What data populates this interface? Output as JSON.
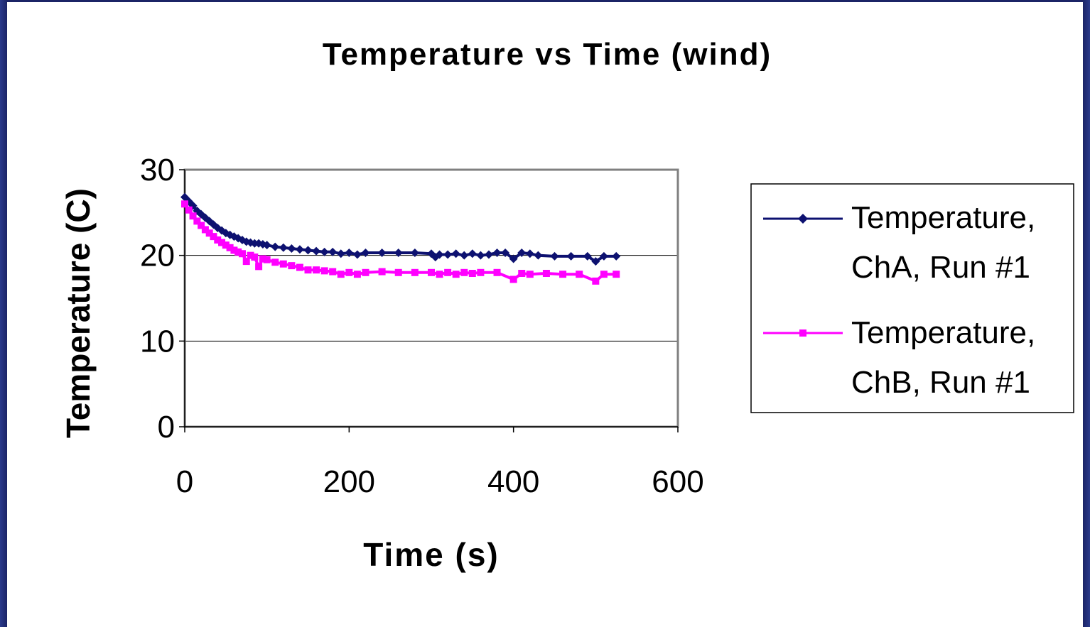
{
  "colors": {
    "background": "#1b2466",
    "seriesA": "#0d1170",
    "seriesB": "#ff00ff",
    "grid": "#000000",
    "plotBorder": "#808080"
  },
  "chart_data": {
    "type": "line",
    "title": "Temperature vs Time (wind)",
    "xlabel": "Time (s)",
    "ylabel": "Temperature (C)",
    "xlim": [
      0,
      600
    ],
    "ylim": [
      0,
      30
    ],
    "xticks": [
      "0",
      "200",
      "400",
      "600"
    ],
    "yticks": [
      "0",
      "10",
      "20",
      "30"
    ],
    "grid": "horizontal",
    "legend_position": "right",
    "series": [
      {
        "name": "Temperature, ChA, Run #1",
        "line1": "Temperature,",
        "line2": "ChA, Run #1",
        "marker": "diamond",
        "color": "#0d1170",
        "x": [
          0,
          5,
          10,
          15,
          20,
          25,
          30,
          35,
          40,
          45,
          50,
          55,
          60,
          65,
          70,
          75,
          80,
          85,
          90,
          95,
          100,
          110,
          120,
          130,
          140,
          150,
          160,
          170,
          180,
          190,
          200,
          210,
          220,
          240,
          260,
          280,
          300,
          305,
          310,
          320,
          330,
          340,
          350,
          360,
          370,
          380,
          390,
          400,
          410,
          420,
          430,
          450,
          470,
          490,
          500,
          510,
          525
        ],
        "y": [
          26.8,
          26.3,
          25.8,
          25.2,
          24.8,
          24.4,
          24.0,
          23.6,
          23.2,
          22.9,
          22.6,
          22.4,
          22.2,
          22.0,
          21.8,
          21.6,
          21.5,
          21.4,
          21.4,
          21.3,
          21.2,
          21.0,
          20.9,
          20.8,
          20.7,
          20.6,
          20.5,
          20.4,
          20.4,
          20.2,
          20.3,
          20.1,
          20.3,
          20.3,
          20.3,
          20.3,
          20.2,
          19.8,
          20.1,
          20.1,
          20.2,
          20.0,
          20.2,
          20.0,
          20.1,
          20.3,
          20.3,
          19.6,
          20.3,
          20.2,
          20.0,
          19.9,
          19.9,
          19.9,
          19.3,
          19.9,
          19.9
        ]
      },
      {
        "name": "Temperature, ChB, Run #1",
        "line1": "Temperature,",
        "line2": "ChB, Run #1",
        "marker": "square",
        "color": "#ff00ff",
        "x": [
          0,
          5,
          10,
          15,
          20,
          25,
          30,
          35,
          40,
          45,
          50,
          55,
          60,
          65,
          70,
          75,
          80,
          85,
          90,
          95,
          100,
          110,
          120,
          130,
          140,
          150,
          160,
          170,
          180,
          190,
          200,
          210,
          220,
          240,
          260,
          280,
          300,
          310,
          320,
          330,
          340,
          350,
          360,
          380,
          400,
          410,
          420,
          440,
          460,
          480,
          500,
          510,
          525
        ],
        "y": [
          26.0,
          25.3,
          24.6,
          24.0,
          23.5,
          23.0,
          22.6,
          22.2,
          21.8,
          21.5,
          21.2,
          20.9,
          20.6,
          20.4,
          20.2,
          19.3,
          20.0,
          19.8,
          18.7,
          19.6,
          19.5,
          19.2,
          19.0,
          18.8,
          18.6,
          18.3,
          18.3,
          18.2,
          18.1,
          17.8,
          18.0,
          17.8,
          18.0,
          18.1,
          18.0,
          18.0,
          18.0,
          17.8,
          18.0,
          17.8,
          18.0,
          17.9,
          18.0,
          18.0,
          17.2,
          17.9,
          17.8,
          17.9,
          17.8,
          17.8,
          17.0,
          17.8,
          17.8
        ]
      }
    ]
  }
}
